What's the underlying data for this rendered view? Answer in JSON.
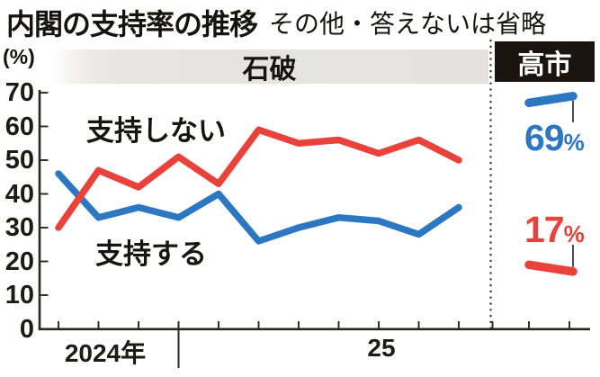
{
  "header": {
    "title": "内閣の支持率の推移",
    "subtitle": "その他・答えないは省略"
  },
  "axis_unit": "(%)",
  "sections": {
    "ishiba_label": "石破",
    "takaichi_label": "高市"
  },
  "series_labels": {
    "oppose": "支持しない",
    "support": "支持する"
  },
  "end_labels": {
    "support_value": "69",
    "support_unit": "%",
    "oppose_value": "17",
    "oppose_unit": "%"
  },
  "x_labels": {
    "year_2024": "2024年",
    "year_25": "25"
  },
  "colors": {
    "support_blue": "#2b77c2",
    "oppose_red": "#e8423a",
    "band_gray": "#e3e2e0",
    "takaichi_box_black": "#1b1411",
    "axis_black": "#2a2623",
    "leader_gray": "#3a3a3a"
  },
  "chart_data": {
    "type": "line",
    "title": "内閣の支持率の推移",
    "note": "その他・答えないは省略",
    "ylabel": "(%)",
    "ylim": [
      0,
      70
    ],
    "y_ticks": [
      0,
      10,
      20,
      30,
      40,
      50,
      60,
      70
    ],
    "grid": false,
    "x_sections": [
      {
        "label": "石破",
        "n_points": 11,
        "x_axis_labels": [
          "2024年",
          "25"
        ],
        "year_divider_after_point": 3
      },
      {
        "label": "高市",
        "n_points": 2
      }
    ],
    "series": [
      {
        "name": "支持する",
        "color": "#2b77c2",
        "ishiba_values": [
          46,
          33,
          36,
          33,
          40,
          26,
          30,
          33,
          32,
          28,
          36
        ],
        "takaichi_values": [
          67,
          69
        ],
        "takaichi_end_label": "69%"
      },
      {
        "name": "支持しない",
        "color": "#e8423a",
        "ishiba_values": [
          30,
          47,
          42,
          51,
          43,
          59,
          55,
          56,
          52,
          56,
          50
        ],
        "takaichi_values": [
          19,
          17
        ],
        "takaichi_end_label": "17%"
      }
    ]
  }
}
